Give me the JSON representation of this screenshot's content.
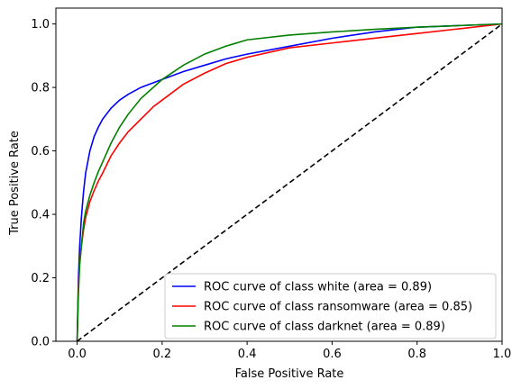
{
  "chart_data": {
    "type": "line",
    "xlabel": "False Positive Rate",
    "ylabel": "True Positive Rate",
    "xlim": [
      -0.05,
      1.0
    ],
    "ylim": [
      0.0,
      1.05
    ],
    "xticks": [
      "0.0",
      "0.2",
      "0.4",
      "0.6",
      "0.8",
      "1.0"
    ],
    "yticks": [
      "0.0",
      "0.2",
      "0.4",
      "0.6",
      "0.8",
      "1.0"
    ],
    "grid": false,
    "legend_position": "lower-right",
    "series": [
      {
        "name": "ROC curve of class white (area = 0.89)",
        "color": "#0000ff",
        "x": [
          0.0,
          0.003,
          0.006,
          0.01,
          0.015,
          0.02,
          0.03,
          0.04,
          0.05,
          0.06,
          0.08,
          0.1,
          0.12,
          0.15,
          0.2,
          0.25,
          0.3,
          0.35,
          0.4,
          0.5,
          0.6,
          0.7,
          0.8,
          0.9,
          1.0
        ],
        "y": [
          0.0,
          0.2,
          0.3,
          0.39,
          0.47,
          0.53,
          0.6,
          0.645,
          0.675,
          0.7,
          0.735,
          0.76,
          0.778,
          0.8,
          0.825,
          0.85,
          0.87,
          0.89,
          0.905,
          0.93,
          0.955,
          0.975,
          0.99,
          0.995,
          1.0
        ]
      },
      {
        "name": "ROC curve of class ransomware (area = 0.85)",
        "color": "#ff0000",
        "x": [
          0.0,
          0.003,
          0.006,
          0.01,
          0.015,
          0.02,
          0.03,
          0.04,
          0.05,
          0.06,
          0.08,
          0.1,
          0.12,
          0.15,
          0.18,
          0.2,
          0.25,
          0.3,
          0.35,
          0.4,
          0.5,
          0.6,
          0.7,
          0.8,
          0.9,
          1.0
        ],
        "y": [
          0.0,
          0.17,
          0.25,
          0.3,
          0.35,
          0.39,
          0.44,
          0.475,
          0.505,
          0.53,
          0.585,
          0.625,
          0.66,
          0.7,
          0.74,
          0.76,
          0.81,
          0.845,
          0.875,
          0.895,
          0.925,
          0.94,
          0.955,
          0.97,
          0.985,
          1.0
        ]
      },
      {
        "name": "ROC curve of class darknet (area = 0.89)",
        "color": "#008000",
        "x": [
          0.0,
          0.003,
          0.006,
          0.01,
          0.015,
          0.02,
          0.03,
          0.04,
          0.05,
          0.06,
          0.08,
          0.1,
          0.12,
          0.15,
          0.2,
          0.25,
          0.3,
          0.35,
          0.4,
          0.5,
          0.6,
          0.7,
          0.8,
          0.9,
          1.0
        ],
        "y": [
          0.0,
          0.15,
          0.24,
          0.3,
          0.37,
          0.41,
          0.46,
          0.5,
          0.535,
          0.565,
          0.625,
          0.675,
          0.715,
          0.765,
          0.825,
          0.87,
          0.905,
          0.93,
          0.95,
          0.965,
          0.975,
          0.983,
          0.99,
          0.995,
          1.0
        ]
      },
      {
        "name": "",
        "color": "#000000",
        "dashed": true,
        "x": [
          0.0,
          1.0
        ],
        "y": [
          0.0,
          1.0
        ]
      }
    ]
  }
}
